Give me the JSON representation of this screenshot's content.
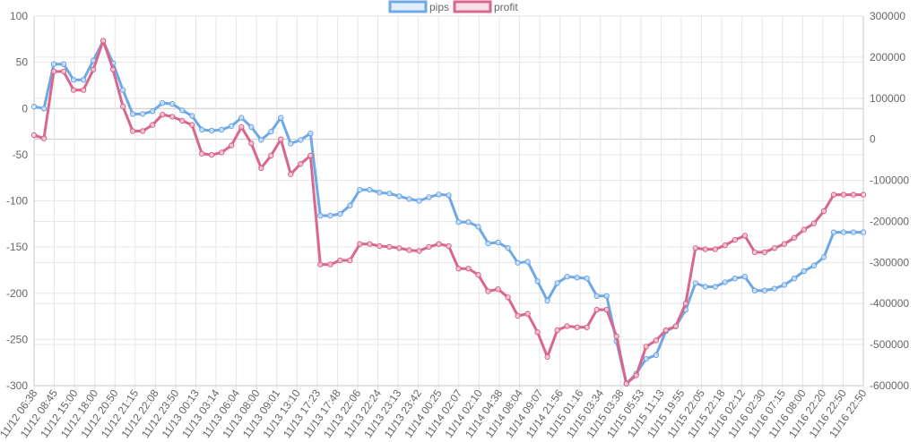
{
  "chart_data": {
    "type": "line",
    "title": "",
    "xlabel": "",
    "ylabel": "",
    "legend_position": "top-center",
    "grid": true,
    "y_left": {
      "min": -300,
      "max": 100,
      "ticks": [
        100,
        50,
        0,
        -50,
        -100,
        -150,
        -200,
        -250,
        -300
      ]
    },
    "y_right": {
      "min": -600000,
      "max": 300000,
      "ticks": [
        300000,
        200000,
        100000,
        0,
        -100000,
        -200000,
        -300000,
        -400000,
        -500000,
        -600000
      ]
    },
    "x_tick_labels": [
      "11/12 06:38",
      "11/12 08:45",
      "11/12 15:00",
      "11/12 18:00",
      "11/12 20:50",
      "11/12 21:15",
      "11/12 22:08",
      "11/12 23:50",
      "11/13 00:13",
      "11/13 03:14",
      "11/13 06:04",
      "11/13 08:00",
      "11/13 09:01",
      "11/13 13:10",
      "11/13 17:23",
      "11/13 17:48",
      "11/13 22:06",
      "11/13 22:24",
      "11/13 23:13",
      "11/13 23:42",
      "11/14 00:25",
      "11/14 02:07",
      "11/14 02:10",
      "11/14 04:38",
      "11/14 08:04",
      "11/14 09:07",
      "11/14 21:56",
      "11/15 01:16",
      "11/15 03:34",
      "11/15 03:38",
      "11/15 05:53",
      "11/15 11:13",
      "11/15 19:55",
      "11/15 22:05",
      "11/15 22:18",
      "11/16 02:12",
      "11/16 02:30",
      "11/16 07:15",
      "11/16 08:00",
      "11/16 22:20",
      "11/16 22:50",
      "11/16 22:50"
    ],
    "series": [
      {
        "name": "pips",
        "axis": "left",
        "color": "#6fa8e6",
        "values": [
          2,
          0,
          48,
          48,
          31,
          31,
          52,
          73,
          49,
          20,
          -6,
          -6,
          -3,
          6,
          5,
          -2,
          -8,
          -23,
          -24,
          -23,
          -19,
          -10,
          -20,
          -34,
          -25,
          -10,
          -38,
          -34,
          -27,
          -116,
          -116,
          -114,
          -105,
          -88,
          -88,
          -91,
          -92,
          -95,
          -98,
          -100,
          -96,
          -93,
          -94,
          -123,
          -123,
          -128,
          -146,
          -145,
          -151,
          -167,
          -166,
          -187,
          -208,
          -189,
          -182,
          -183,
          -184,
          -203,
          -203,
          -252,
          -298,
          -287,
          -271,
          -267,
          -241,
          -236,
          -218,
          -189,
          -193,
          -193,
          -188,
          -184,
          -182,
          -197,
          -197,
          -195,
          -191,
          -184,
          -176,
          -170,
          -161,
          -134,
          -134,
          -134,
          -134
        ]
      },
      {
        "name": "profit",
        "axis": "right",
        "color": "#d9668d",
        "values": [
          10000,
          2000,
          165000,
          165000,
          120000,
          120000,
          170000,
          240000,
          170000,
          80000,
          20000,
          20000,
          35000,
          60000,
          55000,
          45000,
          35000,
          -35000,
          -38000,
          -32000,
          -15000,
          30000,
          -10000,
          -70000,
          -40000,
          0,
          -85000,
          -60000,
          -40000,
          -305000,
          -305000,
          -295000,
          -295000,
          -255000,
          -255000,
          -260000,
          -262000,
          -265000,
          -270000,
          -272000,
          -262000,
          -255000,
          -260000,
          -315000,
          -315000,
          -330000,
          -370000,
          -365000,
          -385000,
          -430000,
          -425000,
          -470000,
          -530000,
          -465000,
          -455000,
          -458000,
          -458000,
          -415000,
          -415000,
          -480000,
          -595000,
          -575000,
          -505000,
          -490000,
          -465000,
          -455000,
          -400000,
          -265000,
          -268000,
          -268000,
          -258000,
          -245000,
          -235000,
          -275000,
          -275000,
          -265000,
          -255000,
          -240000,
          -220000,
          -205000,
          -175000,
          -135000,
          -135000,
          -135000,
          -135000
        ]
      }
    ]
  }
}
